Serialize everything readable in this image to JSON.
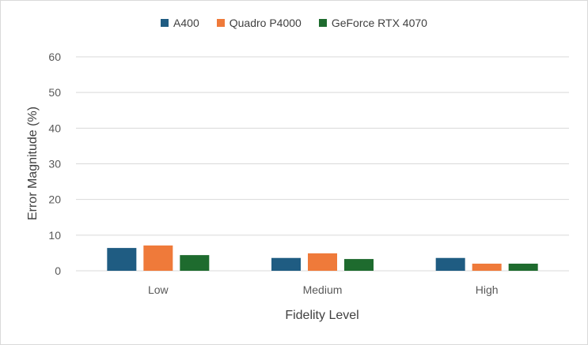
{
  "chart_data": {
    "type": "bar",
    "categories": [
      "Low",
      "Medium",
      "High"
    ],
    "series": [
      {
        "name": "A400",
        "color": "#1f5c82",
        "values": [
          6.4,
          3.6,
          3.6
        ]
      },
      {
        "name": "Quadro P4000",
        "color": "#ef7a3a",
        "values": [
          7.1,
          4.9,
          2.0
        ]
      },
      {
        "name": "GeForce RTX 4070",
        "color": "#1e6b2e",
        "values": [
          4.4,
          3.3,
          2.0
        ]
      }
    ],
    "xlabel": "Fidelity Level",
    "ylabel": "Error Magnitude (%)",
    "ylim": [
      0,
      60
    ],
    "yticks": [
      0,
      10,
      20,
      30,
      40,
      50,
      60
    ],
    "grid": true,
    "legend_position": "top"
  }
}
